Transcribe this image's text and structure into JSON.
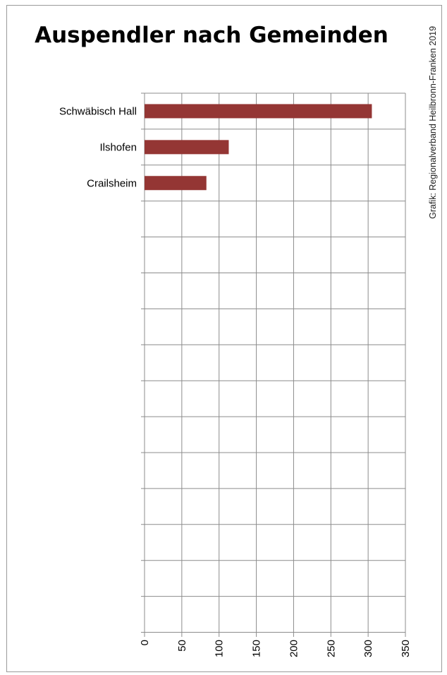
{
  "chart_data": {
    "type": "bar",
    "orientation": "horizontal",
    "title": "Auspendler nach Gemeinden",
    "categories": [
      "Schwäbisch Hall",
      "Ilshofen",
      "Crailsheim"
    ],
    "values": [
      305,
      113,
      83
    ],
    "xlim": [
      0,
      350
    ],
    "xticks": [
      "0",
      "50",
      "100",
      "150",
      "200",
      "250",
      "300",
      "350"
    ],
    "grid": true,
    "bar_color": "#943634",
    "credit": "Grafik: Regionalverband Heilbronn-Franken 2019"
  }
}
